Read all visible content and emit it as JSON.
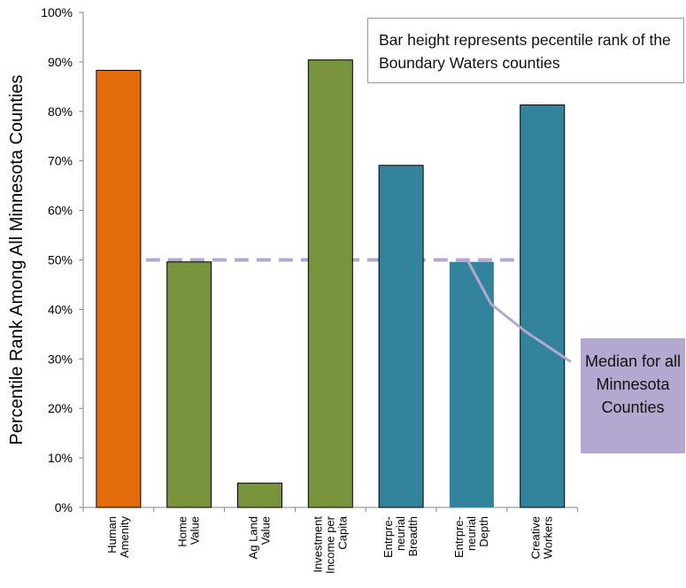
{
  "chart_data": {
    "type": "bar",
    "ylabel": "Percentile Rank Among All Minnesota Counties",
    "ylim": [
      0,
      100
    ],
    "yticks": [
      "0%",
      "10%",
      "20%",
      "30%",
      "40%",
      "50%",
      "60%",
      "70%",
      "80%",
      "90%",
      "100%"
    ],
    "grid": false,
    "categories": [
      [
        "Human",
        "Amenity"
      ],
      [
        "Home",
        "Value"
      ],
      [
        "Ag Land",
        "Value"
      ],
      [
        "Investment",
        "Income per",
        "Capita"
      ],
      [
        "Entrpre-",
        "neurial",
        "Breadth"
      ],
      [
        "Entrpre-",
        "neurial",
        "Depth"
      ],
      [
        "Creative",
        "Workers"
      ]
    ],
    "values": [
      88.3,
      49.6,
      4.9,
      90.4,
      69.1,
      49.6,
      81.3
    ],
    "bar_colors": [
      "#e36c0a",
      "#77933c",
      "#77933c",
      "#77933c",
      "#31849b",
      "#31849b",
      "#31849b"
    ],
    "median_line": {
      "value": 50,
      "color": "#b4a7d0",
      "style": "dashed"
    },
    "annotations": {
      "note": "Bar height represents pecentile rank of the Boundary Waters counties",
      "median_callout": "Median for all Minnesota Counties"
    }
  }
}
